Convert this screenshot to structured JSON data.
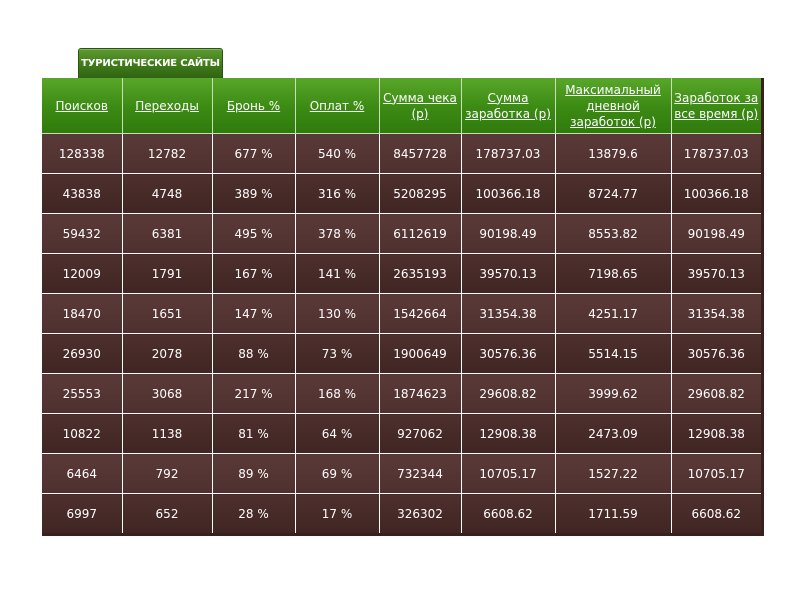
{
  "tab": {
    "label": "ТУРИСТИЧЕСКИЕ САЙТЫ"
  },
  "table": {
    "headers": [
      "Поисков",
      "Переходы",
      "Бронь %",
      "Оплат %",
      "Сумма чека (р)",
      "Сумма заработка (р)",
      "Максимальный дневной заработок (р)",
      "Заработок за все время (р)"
    ],
    "rows": [
      [
        "128338",
        "12782",
        "677 %",
        "540 %",
        "8457728",
        "178737.03",
        "13879.6",
        "178737.03"
      ],
      [
        "43838",
        "4748",
        "389 %",
        "316 %",
        "5208295",
        "100366.18",
        "8724.77",
        "100366.18"
      ],
      [
        "59432",
        "6381",
        "495 %",
        "378 %",
        "6112619",
        "90198.49",
        "8553.82",
        "90198.49"
      ],
      [
        "12009",
        "1791",
        "167 %",
        "141 %",
        "2635193",
        "39570.13",
        "7198.65",
        "39570.13"
      ],
      [
        "18470",
        "1651",
        "147 %",
        "130 %",
        "1542664",
        "31354.38",
        "4251.17",
        "31354.38"
      ],
      [
        "26930",
        "2078",
        "88 %",
        "73 %",
        "1900649",
        "30576.36",
        "5514.15",
        "30576.36"
      ],
      [
        "25553",
        "3068",
        "217 %",
        "168 %",
        "1874623",
        "29608.82",
        "3999.62",
        "29608.82"
      ],
      [
        "10822",
        "1138",
        "81 %",
        "64 %",
        "927062",
        "12908.38",
        "2473.09",
        "12908.38"
      ],
      [
        "6464",
        "792",
        "89 %",
        "69 %",
        "732344",
        "10705.17",
        "1527.22",
        "10705.17"
      ],
      [
        "6997",
        "652",
        "28 %",
        "17 %",
        "326302",
        "6608.62",
        "1711.59",
        "6608.62"
      ]
    ]
  },
  "colors": {
    "header_green": "#3d8c14",
    "row_brown": "#4e302e",
    "text": "#ffffff"
  }
}
